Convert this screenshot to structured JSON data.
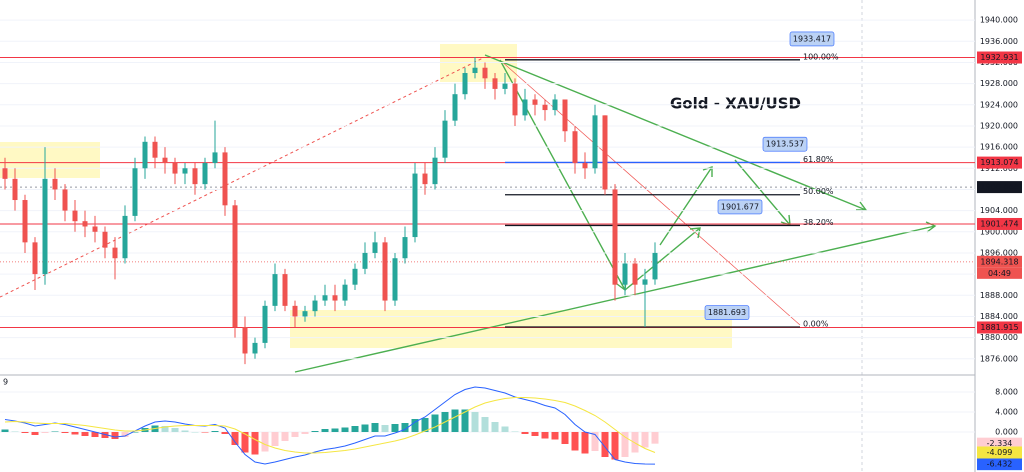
{
  "chart_data": [
    {
      "type": "candlestick",
      "title": "Gold - XAU/USD",
      "candles": {
        "open": [
          1912,
          1910,
          1906,
          1898,
          1892,
          1910,
          1908,
          1904,
          1902,
          1901,
          1900,
          1897,
          1895,
          1903,
          1912,
          1917,
          1914,
          1913,
          1911,
          1912,
          1909,
          1913,
          1915,
          1905,
          1882,
          1877,
          1879,
          1886,
          1892,
          1886,
          1884,
          1885,
          1887,
          1888,
          1887,
          1890,
          1893,
          1896,
          1898,
          1887,
          1895,
          1899,
          1911,
          1909,
          1914,
          1921,
          1926,
          1930,
          1931,
          1929,
          1927,
          1928,
          1922,
          1925,
          1924,
          1923,
          1925,
          1919,
          1913,
          1912,
          1922,
          1908,
          1890,
          1894,
          1890,
          1891
        ],
        "high": [
          1914,
          1912,
          1907,
          1899,
          1916,
          1912,
          1909,
          1906,
          1904,
          1903,
          1901,
          1899,
          1905,
          1914,
          1918,
          1918,
          1916,
          1914,
          1913,
          1913,
          1914,
          1921,
          1916,
          1906,
          1884,
          1880,
          1887,
          1894,
          1893,
          1887,
          1886,
          1888,
          1890,
          1890,
          1891,
          1894,
          1898,
          1900,
          1899,
          1896,
          1901,
          1913,
          1913,
          1916,
          1923,
          1928,
          1931,
          1933,
          1932,
          1930,
          1930,
          1929,
          1927,
          1926,
          1925,
          1926,
          1925,
          1920,
          1915,
          1924,
          1922,
          1909,
          1896,
          1895,
          1893,
          1898
        ],
        "low": [
          1908,
          1904,
          1896,
          1889,
          1890,
          1906,
          1902,
          1900,
          1899,
          1898,
          1895,
          1891,
          1894,
          1902,
          1910,
          1912,
          1911,
          1909,
          1909,
          1907,
          1908,
          1912,
          1903,
          1880,
          1875,
          1876,
          1878,
          1885,
          1885,
          1882,
          1883,
          1884,
          1886,
          1885,
          1886,
          1889,
          1892,
          1895,
          1885,
          1886,
          1894,
          1898,
          1907,
          1908,
          1913,
          1920,
          1925,
          1929,
          1927,
          1925,
          1926,
          1920,
          1921,
          1922,
          1921,
          1922,
          1917,
          1911,
          1910,
          1911,
          1907,
          1887,
          1888,
          1888,
          1882,
          1890
        ],
        "close": [
          1910,
          1906,
          1898,
          1892,
          1910,
          1908,
          1904,
          1902,
          1901,
          1900,
          1897,
          1895,
          1903,
          1912,
          1917,
          1914,
          1913,
          1911,
          1912,
          1909,
          1913,
          1915,
          1905,
          1882,
          1877,
          1879,
          1886,
          1892,
          1886,
          1884,
          1885,
          1887,
          1888,
          1887,
          1890,
          1893,
          1896,
          1898,
          1887,
          1895,
          1899,
          1911,
          1909,
          1914,
          1921,
          1926,
          1930,
          1931,
          1929,
          1927,
          1928,
          1922,
          1925,
          1924,
          1923,
          1925,
          1919,
          1913,
          1912,
          1922,
          1908,
          1890,
          1894,
          1890,
          1891,
          1896
        ]
      },
      "up_color": "#26a69a",
      "down_color": "#ef5350",
      "ylim": [
        1873.5,
        1943.8
      ],
      "yticks": [
        {
          "value": 1876,
          "label": "1876.000"
        },
        {
          "value": 1880,
          "label": "1880.000"
        },
        {
          "value": 1884,
          "label": "1884.000"
        },
        {
          "value": 1888,
          "label": "1888.000"
        },
        {
          "value": 1892,
          "label": "1892.000"
        },
        {
          "value": 1896,
          "label": "1896.000"
        },
        {
          "value": 1900,
          "label": "1900.000"
        },
        {
          "value": 1904,
          "label": "1904.000"
        },
        {
          "value": 1908,
          "label": "1908.000"
        },
        {
          "value": 1912,
          "label": "1912.000"
        },
        {
          "value": 1916,
          "label": "1916.000"
        },
        {
          "value": 1920,
          "label": "1920.000"
        },
        {
          "value": 1924,
          "label": "1924.000"
        },
        {
          "value": 1928,
          "label": "1928.000"
        },
        {
          "value": 1932,
          "label": "1932.000"
        },
        {
          "value": 1936,
          "label": "1936.000"
        },
        {
          "value": 1940,
          "label": "1940.000"
        }
      ],
      "levels": [
        1932.931,
        1913.074,
        1901.474,
        1881.915
      ],
      "level_color": "#f23645",
      "current_price": 1908.444,
      "last_price": 1894.318,
      "countdown": "04:49",
      "fib_levels": [
        {
          "value": 1932.5,
          "label": "100.00%",
          "color": "#131722"
        },
        {
          "value": 1913.1,
          "label": "61.80%",
          "color": "#2962ff"
        },
        {
          "value": 1907.0,
          "label": "50.00%",
          "color": "#131722"
        },
        {
          "value": 1901.2,
          "label": "38.20%",
          "color": "#131722"
        },
        {
          "value": 1882.0,
          "label": "0.00%",
          "color": "#131722"
        }
      ],
      "callouts": [
        1933.417,
        1913.537,
        1901.677,
        1881.693
      ]
    },
    {
      "type": "macd",
      "indicator_label": "9",
      "histogram": {
        "values": [
          0.5,
          0.1,
          -0.2,
          -0.6,
          -0.2,
          0.1,
          -0.2,
          -0.5,
          -0.8,
          -1,
          -1.2,
          -1.4,
          -1,
          0,
          0.8,
          1.3,
          1.2,
          0.8,
          0.3,
          0,
          -0.1,
          0.2,
          -0.4,
          -2.6,
          -4.1,
          -4.5,
          -3.9,
          -2.8,
          -1.8,
          -1,
          -0.4,
          0.2,
          0.6,
          0.7,
          0.9,
          1.2,
          1.5,
          1.8,
          1.4,
          1.6,
          1.8,
          2.6,
          2.8,
          3.5,
          4,
          4.5,
          4.5,
          4,
          3,
          2,
          1.1,
          0.1,
          -0.4,
          -0.8,
          -1.3,
          -1.5,
          -2.4,
          -3.7,
          -4.3,
          -3.8,
          -5,
          -5.5,
          -5,
          -4.1,
          -3.1,
          -2.334
        ],
        "colors": [
          "#26a69a",
          "#b2dfdb",
          "#ff5252",
          "#ffcdd2"
        ],
        "last_label": "-2.334"
      },
      "series": [
        {
          "color": "#2962ff",
          "last_label": "-6.432",
          "values": [
            2.5,
            2.2,
            1.8,
            1.2,
            1.5,
            1.8,
            1.5,
            1.0,
            0.5,
            0,
            -0.5,
            -1,
            -0.8,
            0.2,
            1.2,
            2,
            2.2,
            2,
            1.6,
            1.3,
            1.2,
            1.5,
            0.8,
            -2,
            -4.5,
            -6,
            -6.4,
            -6,
            -5.5,
            -5,
            -4.6,
            -4,
            -3.5,
            -3.2,
            -2.8,
            -2.2,
            -1.5,
            -0.8,
            -0.8,
            -0.2,
            0.5,
            2,
            3,
            4.5,
            6,
            7.5,
            8.5,
            9,
            8.8,
            8.3,
            7.8,
            7,
            6.5,
            6,
            5.3,
            4.8,
            3.5,
            1.5,
            0,
            -0.5,
            -3,
            -5.5,
            -6,
            -6.3,
            -6.4,
            -6.432
          ]
        },
        {
          "color": "#f5e642",
          "last_label": "-4.099",
          "values": [
            2,
            2.1,
            2,
            1.8,
            1.7,
            1.7,
            1.7,
            1.5,
            1.3,
            1,
            0.7,
            0.4,
            0.2,
            0.2,
            0.4,
            0.7,
            1,
            1.2,
            1.3,
            1.3,
            1.3,
            1.3,
            1.2,
            0.6,
            -0.4,
            -1.5,
            -2.5,
            -3.2,
            -3.7,
            -4,
            -4.2,
            -4.2,
            -4.1,
            -3.9,
            -3.7,
            -3.4,
            -3,
            -2.6,
            -2.2,
            -1.8,
            -1.3,
            -0.6,
            0.2,
            1,
            2,
            3,
            4,
            5,
            5.8,
            6.3,
            6.7,
            6.9,
            6.9,
            6.8,
            6.6,
            6.3,
            5.9,
            5.2,
            4.3,
            3.3,
            2,
            0.5,
            -1,
            -2.2,
            -3.3,
            -4.099
          ]
        }
      ],
      "ylim": [
        -8,
        10.8
      ],
      "yticks": [
        {
          "value": 8,
          "label": "8.000"
        },
        {
          "value": 4,
          "label": "4.000"
        },
        {
          "value": 0,
          "label": "0.000"
        }
      ]
    }
  ]
}
